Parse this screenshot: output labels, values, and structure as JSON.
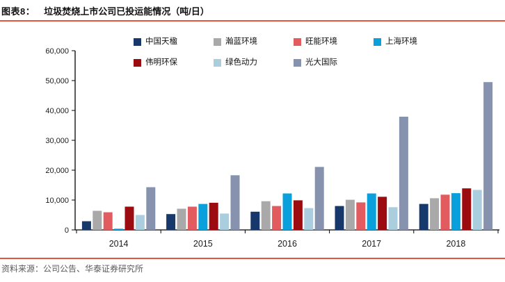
{
  "header": {
    "label": "图表8：",
    "title": "垃圾焚烧上市公司已投运能情况（吨/日）"
  },
  "footer": {
    "source": "资料来源：公司公告、华泰证券研究所"
  },
  "colors": {
    "rule": "#E4553C",
    "axis": "#000000",
    "tick_label": "#1a1a1a"
  },
  "chart_data": {
    "type": "bar",
    "title": "垃圾焚烧上市公司已投运能情况（吨/日）",
    "xlabel": "",
    "ylabel": "",
    "categories": [
      "2014",
      "2015",
      "2016",
      "2017",
      "2018"
    ],
    "series": [
      {
        "name": "中国天楹",
        "color": "#17386A",
        "values": [
          2900,
          5300,
          6100,
          8000,
          8700
        ]
      },
      {
        "name": "瀚蓝环境",
        "color": "#A9A9A9",
        "values": [
          6400,
          7100,
          9600,
          10100,
          10600
        ]
      },
      {
        "name": "旺能环境",
        "color": "#E15B5F",
        "values": [
          5900,
          7800,
          8000,
          9200,
          11800
        ]
      },
      {
        "name": "上海环境",
        "color": "#0AA0DC",
        "values": [
          400,
          8700,
          12200,
          12200,
          12300
        ]
      },
      {
        "name": "伟明环保",
        "color": "#9C0B10",
        "values": [
          7800,
          9100,
          9900,
          11100,
          13900
        ]
      },
      {
        "name": "绿色动力",
        "color": "#ABCEDF",
        "values": [
          5000,
          5500,
          7300,
          7600,
          13400
        ]
      },
      {
        "name": "光大国际",
        "color": "#8793AE",
        "values": [
          14300,
          18300,
          21100,
          37900,
          49500
        ]
      }
    ],
    "ylim": [
      0,
      60000
    ],
    "ytick_step": 10000,
    "ytick_labels": [
      "0",
      "10,000",
      "20,000",
      "30,000",
      "40,000",
      "50,000",
      "60,000"
    ],
    "legend_position": "top",
    "legend_rows": [
      [
        0,
        1,
        2,
        3
      ],
      [
        4,
        5,
        6
      ]
    ],
    "grid": false
  }
}
